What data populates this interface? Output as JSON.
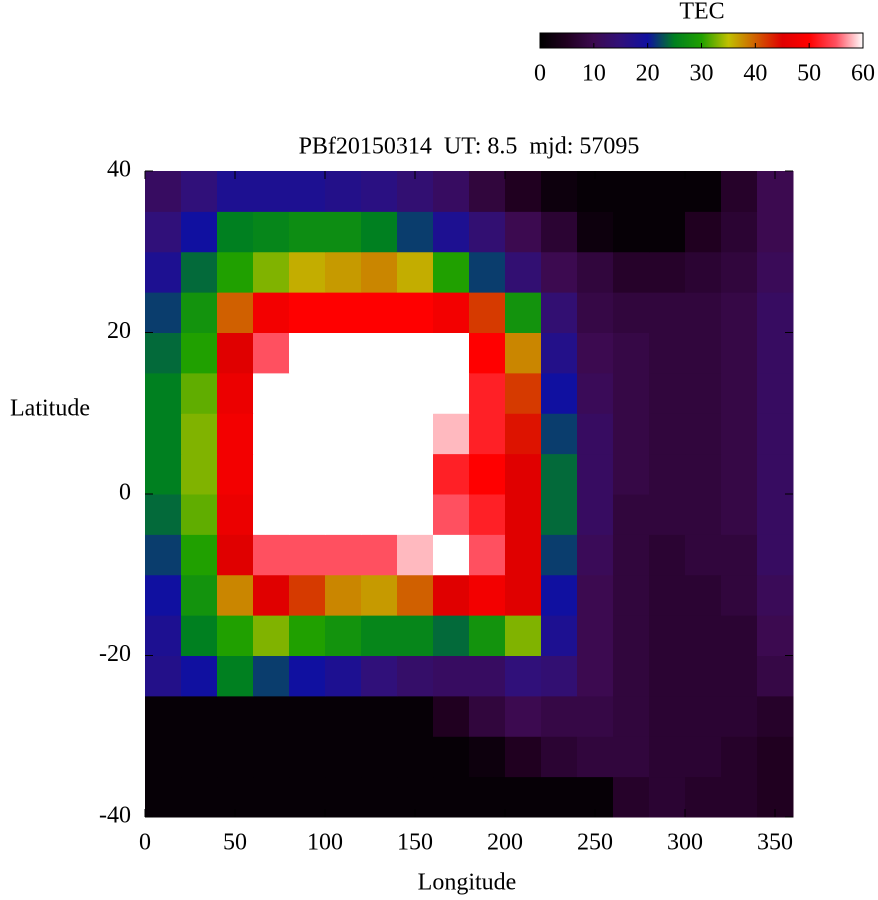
{
  "chart_data": {
    "type": "heatmap",
    "title": "PBf20150314  UT: 8.5  mjd: 57095",
    "x_label": "Longitude",
    "y_label": "Latitude",
    "colorbar_label": "TEC",
    "x": [
      10,
      30,
      50,
      70,
      90,
      110,
      130,
      150,
      170,
      190,
      210,
      230,
      250,
      270,
      290,
      310,
      330,
      350
    ],
    "y": [
      -37.5,
      -32.5,
      -27.5,
      -22.5,
      -17.5,
      -12.5,
      -7.5,
      -2.5,
      2.5,
      7.5,
      12.5,
      17.5,
      22.5,
      27.5,
      32.5,
      37.5
    ],
    "z": [
      [
        1,
        1,
        1,
        1,
        1,
        1,
        1,
        1,
        1,
        1,
        1,
        1,
        1,
        6,
        7,
        6,
        6,
        5
      ],
      [
        1,
        1,
        1,
        1,
        1,
        1,
        1,
        1,
        1,
        2,
        5,
        7,
        8,
        8,
        7,
        7,
        6,
        5
      ],
      [
        1,
        1,
        1,
        1,
        1,
        1,
        1,
        1,
        5,
        8,
        10,
        9,
        9,
        8,
        7,
        7,
        7,
        6
      ],
      [
        17,
        20,
        25,
        22,
        20,
        18,
        15,
        13,
        12,
        12,
        15,
        14,
        10,
        8,
        7,
        7,
        7,
        9
      ],
      [
        18,
        25,
        30,
        33,
        30,
        28,
        26,
        26,
        24,
        28,
        33,
        18,
        10,
        8,
        7,
        7,
        7,
        10
      ],
      [
        20,
        28,
        38,
        45,
        42,
        38,
        37,
        40,
        45,
        48,
        45,
        20,
        10,
        8,
        7,
        7,
        8,
        11
      ],
      [
        22,
        30,
        45,
        55,
        55,
        55,
        55,
        58,
        60,
        55,
        45,
        22,
        11,
        8,
        7,
        8,
        8,
        12
      ],
      [
        24,
        32,
        47,
        60,
        60,
        60,
        60,
        60,
        55,
        52,
        45,
        24,
        12,
        8,
        8,
        8,
        9,
        12
      ],
      [
        25,
        33,
        48,
        60,
        60,
        60,
        60,
        60,
        52,
        50,
        45,
        24,
        12,
        9,
        8,
        8,
        9,
        12
      ],
      [
        25,
        33,
        48,
        60,
        60,
        60,
        60,
        60,
        58,
        52,
        44,
        22,
        12,
        9,
        8,
        8,
        9,
        12
      ],
      [
        25,
        32,
        47,
        60,
        60,
        60,
        60,
        60,
        60,
        52,
        42,
        20,
        11,
        9,
        8,
        8,
        9,
        12
      ],
      [
        24,
        30,
        45,
        55,
        60,
        60,
        60,
        60,
        60,
        50,
        38,
        17,
        10,
        9,
        8,
        8,
        9,
        12
      ],
      [
        22,
        28,
        40,
        48,
        50,
        50,
        50,
        50,
        48,
        42,
        28,
        14,
        9,
        8,
        8,
        8,
        9,
        12
      ],
      [
        18,
        24,
        30,
        33,
        36,
        37,
        38,
        36,
        30,
        22,
        14,
        10,
        8,
        6,
        6,
        7,
        8,
        11
      ],
      [
        15,
        20,
        25,
        26,
        27,
        27,
        25,
        22,
        18,
        14,
        10,
        7,
        2,
        1,
        1,
        5,
        7,
        10
      ],
      [
        12,
        15,
        18,
        18,
        18,
        17,
        16,
        14,
        12,
        8,
        5,
        2,
        1,
        1,
        1,
        1,
        6,
        10
      ]
    ],
    "xlim": [
      0,
      360
    ],
    "ylim": [
      -40,
      40
    ],
    "xticks": [
      0,
      50,
      100,
      150,
      200,
      250,
      300,
      350
    ],
    "yticks": [
      -40,
      -20,
      0,
      20,
      40
    ],
    "clim": [
      0,
      60
    ],
    "cticks": [
      0,
      10,
      20,
      30,
      40,
      50,
      60
    ],
    "colormap": [
      "#000000",
      "#200020",
      "#3c0a50",
      "#30107a",
      "#1010a0",
      "#008020",
      "#20a000",
      "#c0c000",
      "#d06000",
      "#e00000",
      "#ff0000",
      "#ff5060",
      "#ffffff"
    ]
  }
}
